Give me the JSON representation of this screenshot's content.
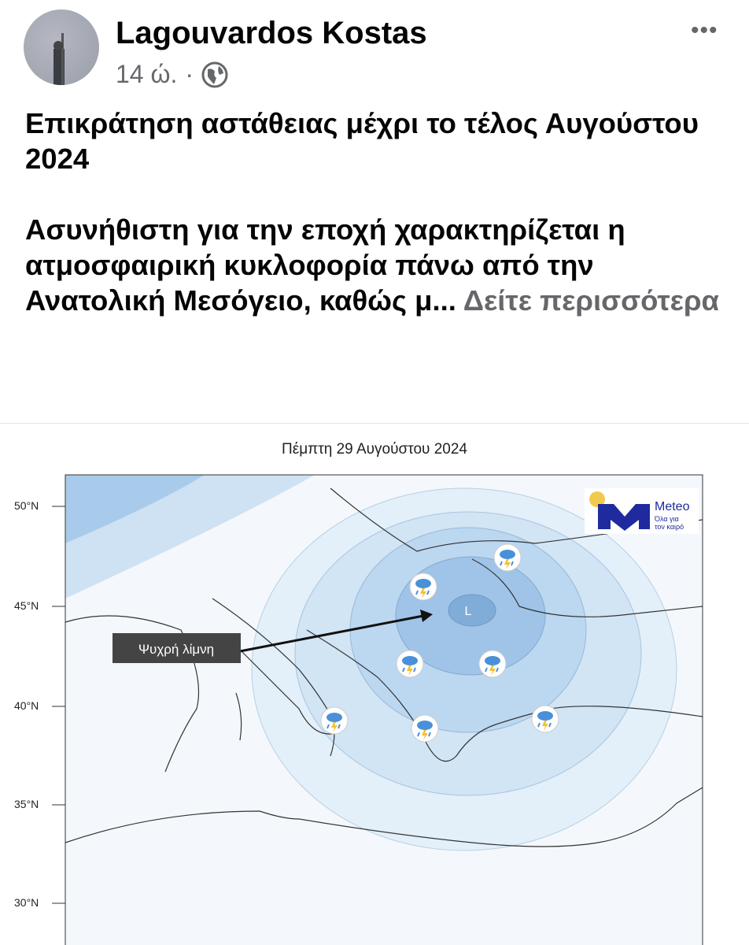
{
  "post": {
    "author": "Lagouvardos Kostas",
    "time": "14 ώ.",
    "separator": "·",
    "privacy_icon": "globe-icon",
    "more_icon": "more-options-icon",
    "more_label": "•••",
    "title": "Επικράτηση αστάθειας μέχρι το τέλος Αυγούστου 2024",
    "body": "Ασυνήθιστη για την εποχή χαρακτηρίζεται η ατμοσφαιρική κυκλοφορία πάνω από την Ανατολική Μεσόγειο, καθώς μ...",
    "see_more": "Δείτε περισσότερα"
  },
  "map": {
    "title": "Πέμπτη 29 Αυγούστου 2024",
    "latitudes": [
      "50°N",
      "45°N",
      "40°N",
      "35°N",
      "30°N"
    ],
    "low_label": "L",
    "annotation": "Ψυχρή λίμνη",
    "logo": {
      "name": "Meteo",
      "tagline_1": "Όλα για",
      "tagline_2": "τον καιρό",
      "color": "#1f2a9e",
      "sun_color": "#f2c94c"
    },
    "weather_icon": "thunderstorm-rain-icon",
    "colors": {
      "light": "#eaf3fb",
      "mid": "#c6def2",
      "dark": "#7fb0dc"
    }
  }
}
